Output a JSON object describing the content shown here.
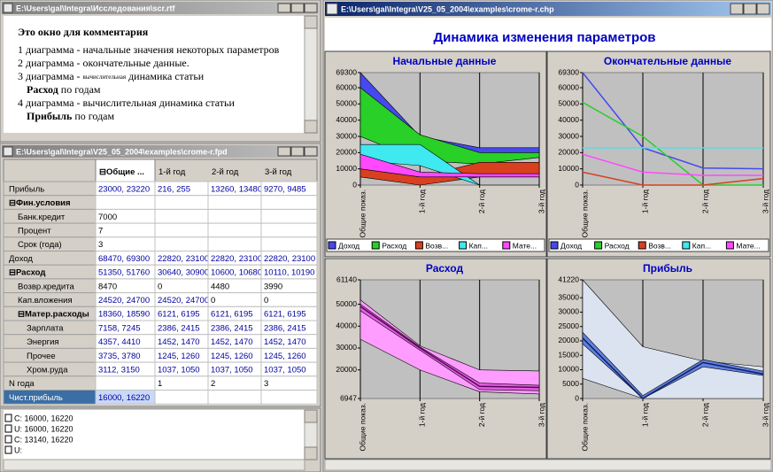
{
  "comment_window": {
    "title": "E:\\Users\\gal\\Integra\\Исследования\\scr.rtf",
    "lines": [
      [
        {
          "text": "Это окно для комментария",
          "style": "bold"
        }
      ],
      [
        {
          "text": "1 диаграмма - начальные значения некоторых параметров"
        }
      ],
      [
        {
          "text": "2 диаграмма - окончательные данные."
        }
      ],
      [
        {
          "text": "3 диаграмма - "
        },
        {
          "text": "вычислительная",
          "style": "small"
        },
        {
          "text": " динамика статьи"
        }
      ],
      [
        {
          "text": "Расход",
          "style": "bold"
        },
        {
          "text": " по годам"
        }
      ],
      [
        {
          "text": "4 диаграмма - вычислительная динамика статьи"
        }
      ],
      [
        {
          "text": "Прибыль",
          "style": "bold"
        },
        {
          "text": " по годам"
        }
      ]
    ]
  },
  "table_window": {
    "title": "E:\\Users\\gal\\Integra\\V25_05_2004\\examples\\crome-r.fpd",
    "columns": [
      "⊟Общие ...",
      "1-й год",
      "2-й год",
      "3-й год"
    ],
    "rows": [
      {
        "label": "Прибыль",
        "cells": [
          "23000, 23220",
          "216, 255",
          "13260, 13480",
          "9270, 9485"
        ]
      },
      {
        "label": "⊟Фин.условия",
        "cells": [
          "",
          "",
          "",
          ""
        ]
      },
      {
        "label": "Банк.кредит",
        "cells": [
          "7000",
          "",
          "",
          ""
        ]
      },
      {
        "label": "Процент",
        "cells": [
          "7",
          "",
          "",
          ""
        ]
      },
      {
        "label": "Срок (года)",
        "cells": [
          "3",
          "",
          "",
          ""
        ]
      },
      {
        "label": "Доход",
        "cells": [
          "68470, 69300",
          "22820, 23100",
          "22820, 23100",
          "22820, 23100"
        ]
      },
      {
        "label": "⊟Расход",
        "cells": [
          "51350, 51760",
          "30640, 30900",
          "10600, 10680",
          "10110, 10190"
        ]
      },
      {
        "label": "Возвр.кредита",
        "cells": [
          "8470",
          "0",
          "4480",
          "3990"
        ]
      },
      {
        "label": "Кап.вложения",
        "cells": [
          "24520, 24700",
          "24520, 24700",
          "0",
          "0"
        ]
      },
      {
        "label": "⊟Матер.расходы",
        "cells": [
          "18360, 18590",
          "6121, 6195",
          "6121, 6195",
          "6121, 6195"
        ]
      },
      {
        "label": "Зарплата",
        "cells": [
          "7158, 7245",
          "2386, 2415",
          "2386, 2415",
          "2386, 2415"
        ]
      },
      {
        "label": "Энергия",
        "cells": [
          "4357, 4410",
          "1452, 1470",
          "1452, 1470",
          "1452, 1470"
        ]
      },
      {
        "label": "Прочее",
        "cells": [
          "3735, 3780",
          "1245, 1260",
          "1245, 1260",
          "1245, 1260"
        ]
      },
      {
        "label": "Хром.руда",
        "cells": [
          "3112, 3150",
          "1037, 1050",
          "1037, 1050",
          "1037, 1050"
        ]
      },
      {
        "label": "N года",
        "cells": [
          "",
          "1",
          "2",
          "3"
        ]
      },
      {
        "label": "Чист.прибыль",
        "cells": [
          "16000, 16220",
          "",
          "",
          ""
        ]
      }
    ]
  },
  "log_window": {
    "lines": [
      "C: 16000, 16220",
      "U: 16000, 16220",
      "C: 13140, 16220",
      "U:"
    ]
  },
  "chart_window": {
    "title": "E:\\Users\\gal\\Integra\\V25_05_2004\\examples\\crome-r.chp",
    "main_title": "Динамика изменения параметров",
    "charts": [
      {
        "type": "range",
        "title": "Начальные данные",
        "categories": [
          "Общие показ.",
          "1-й год",
          "2-й год",
          "3-й год"
        ],
        "ylim": [
          0,
          69300
        ],
        "yticks": [
          0,
          10000,
          20000,
          30000,
          40000,
          50000,
          60000,
          69300
        ],
        "legend": true,
        "series": [
          {
            "name": "Доход",
            "color": "#4848f0",
            "low": [
              35000,
              20000,
              20000,
              20000
            ],
            "high": [
              69300,
              30000,
              23000,
              23000
            ]
          },
          {
            "name": "Расход",
            "color": "#28d028",
            "low": [
              30000,
              15000,
              13000,
              17000
            ],
            "high": [
              60000,
              31000,
              20000,
              20000
            ]
          },
          {
            "name": "Возв...",
            "color": "#d84020",
            "low": [
              5000,
              0,
              5000,
              5000
            ],
            "high": [
              10000,
              5000,
              14000,
              14000
            ]
          },
          {
            "name": "Кап...",
            "color": "#40e8f0",
            "low": [
              15000,
              12000,
              0,
              0
            ],
            "high": [
              25000,
              25000,
              0,
              0
            ]
          },
          {
            "name": "Мате...",
            "color": "#ff48ff",
            "low": [
              10000,
              5000,
              5000,
              5000
            ],
            "high": [
              19000,
              8000,
              7000,
              7000
            ]
          }
        ]
      },
      {
        "type": "range",
        "title": "Окончательные данные",
        "categories": [
          "Общие показ.",
          "1-й год",
          "2-й год",
          "3-й год"
        ],
        "ylim": [
          0,
          69300
        ],
        "yticks": [
          0,
          10000,
          20000,
          30000,
          40000,
          50000,
          60000,
          69300
        ],
        "legend": true,
        "series": [
          {
            "name": "Доход",
            "color": "#4848f0",
            "values": [
              69300,
              23000,
              10500,
              10000
            ]
          },
          {
            "name": "Расход",
            "color": "#28d028",
            "values": [
              51000,
              30000,
              0,
              0
            ]
          },
          {
            "name": "Возв...",
            "color": "#d84020",
            "values": [
              8000,
              0,
              0,
              4000
            ]
          },
          {
            "name": "Кап...",
            "color": "#40e8f0",
            "values": [
              23000,
              23000,
              23000,
              23000
            ]
          },
          {
            "name": "Мате...",
            "color": "#ff48ff",
            "values": [
              19000,
              8000,
              6000,
              6000
            ]
          }
        ]
      },
      {
        "type": "range",
        "title": "Расход",
        "categories": [
          "Общие показ.",
          "1-й год",
          "2-й год",
          "3-й год"
        ],
        "ylim": [
          6947,
          61140
        ],
        "yticks": [
          6947,
          20000,
          30000,
          40000,
          50000,
          61140
        ],
        "legend": false,
        "series": [
          {
            "color": "#ff9cff",
            "low": [
              34000,
              20000,
              10000,
              9000
            ],
            "high": [
              52000,
              31000,
              20000,
              19500
            ]
          },
          {
            "color": "#e060e0",
            "low": [
              47000,
              29000,
              11000,
              10500
            ],
            "high": [
              50000,
              30500,
              14000,
              13000
            ]
          },
          {
            "color": "#600060",
            "values": [
              49000,
              30000,
              12500,
              12000
            ]
          }
        ]
      },
      {
        "type": "range",
        "title": "Прибыль",
        "categories": [
          "Общие показ.",
          "1-й год",
          "2-й год",
          "3-й год"
        ],
        "ylim": [
          0,
          41220
        ],
        "yticks": [
          0,
          5000,
          10000,
          15000,
          20000,
          25000,
          30000,
          35000,
          41220
        ],
        "legend": false,
        "series": [
          {
            "color": "#dce3f0",
            "low": [
              7000,
              0,
              0,
              0
            ],
            "high": [
              41220,
              18000,
              13000,
              11000
            ]
          },
          {
            "color": "#6080e0",
            "low": [
              19000,
              0,
              11000,
              8000
            ],
            "high": [
              23000,
              1000,
              13500,
              9500
            ]
          },
          {
            "color": "#102060",
            "values": [
              21000,
              0,
              12500,
              8500
            ]
          }
        ]
      }
    ]
  }
}
